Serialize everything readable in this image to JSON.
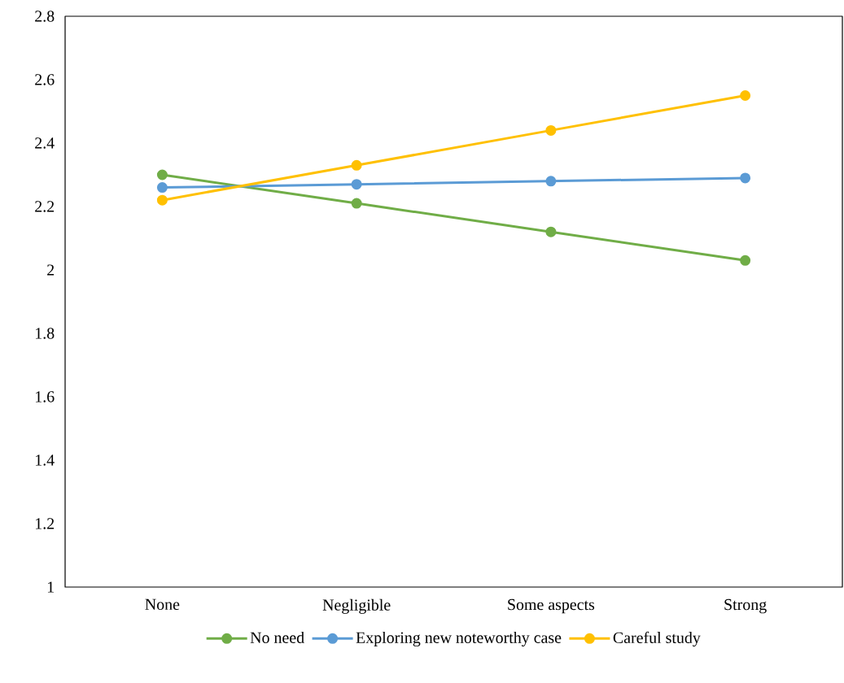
{
  "chart_data": {
    "type": "line",
    "categories": [
      "None",
      "Negligible",
      "Some aspects",
      "Strong"
    ],
    "series": [
      {
        "name": "No need",
        "color": "#70ad47",
        "values": [
          2.3,
          2.21,
          2.12,
          2.03
        ]
      },
      {
        "name": "Exploring new noteworthy case",
        "color": "#5b9bd5",
        "values": [
          2.26,
          2.27,
          2.28,
          2.29
        ]
      },
      {
        "name": "Careful study",
        "color": "#ffc000",
        "values": [
          2.22,
          2.33,
          2.44,
          2.55
        ]
      }
    ],
    "ylim": [
      1,
      2.8
    ],
    "yticks": [
      1,
      1.2,
      1.4,
      1.6,
      1.8,
      2,
      2.2,
      2.4,
      2.6,
      2.8
    ],
    "grid": false,
    "legend": "bottom",
    "marker": "circle",
    "line_style": "solid"
  }
}
